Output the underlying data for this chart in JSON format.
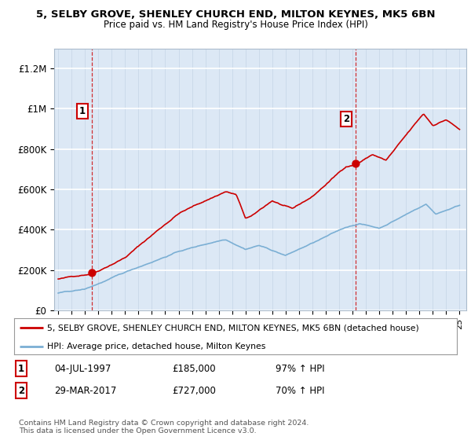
{
  "title_line1": "5, SELBY GROVE, SHENLEY CHURCH END, MILTON KEYNES, MK5 6BN",
  "title_line2": "Price paid vs. HM Land Registry's House Price Index (HPI)",
  "ylim": [
    0,
    1300000
  ],
  "yticks": [
    0,
    200000,
    400000,
    600000,
    800000,
    1000000,
    1200000
  ],
  "ytick_labels": [
    "£0",
    "£200K",
    "£400K",
    "£600K",
    "£800K",
    "£1M",
    "£1.2M"
  ],
  "sale1_year": 1997.54,
  "sale1_price": 185000,
  "sale2_year": 2017.25,
  "sale2_price": 727000,
  "legend_line1": "5, SELBY GROVE, SHENLEY CHURCH END, MILTON KEYNES, MK5 6BN (detached house)",
  "legend_line2": "HPI: Average price, detached house, Milton Keynes",
  "note1_date": "04-JUL-1997",
  "note1_price": "£185,000",
  "note1_hpi": "97% ↑ HPI",
  "note2_date": "29-MAR-2017",
  "note2_price": "£727,000",
  "note2_hpi": "70% ↑ HPI",
  "copyright": "Contains HM Land Registry data © Crown copyright and database right 2024.\nThis data is licensed under the Open Government Licence v3.0.",
  "red_color": "#cc0000",
  "blue_color": "#7bafd4",
  "bg_color": "#dce8f5"
}
